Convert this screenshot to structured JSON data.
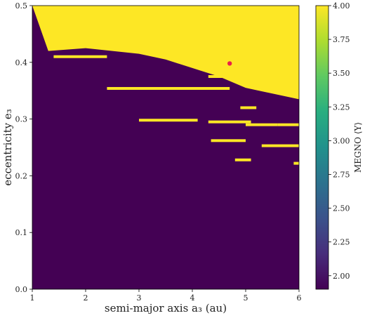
{
  "chart_data": {
    "type": "heatmap",
    "xlabel": "semi-major axis a₃ (au)",
    "ylabel": "eccentricity e₃",
    "colorbar_label": "MEGNO ⟨Y⟩",
    "xlim": [
      1,
      6
    ],
    "ylim": [
      0.0,
      0.5
    ],
    "x_ticks": [
      "1",
      "2",
      "3",
      "4",
      "5",
      "6"
    ],
    "y_ticks": [
      "0.0",
      "0.1",
      "0.2",
      "0.3",
      "0.4",
      "0.5"
    ],
    "colorbar_range": [
      1.9,
      4.0
    ],
    "colorbar_ticks": [
      "2.00",
      "2.25",
      "2.50",
      "2.75",
      "3.00",
      "3.25",
      "3.50",
      "3.75",
      "4.00"
    ],
    "colormap": "viridis",
    "low_value_color": "#440154",
    "high_value_color": "#fde725",
    "grid": false,
    "chaotic_boundary": [
      {
        "a": 1.0,
        "e_min": 0.5
      },
      {
        "a": 1.3,
        "e_min": 0.42
      },
      {
        "a": 2.0,
        "e_min": 0.425
      },
      {
        "a": 3.0,
        "e_min": 0.415
      },
      {
        "a": 3.5,
        "e_min": 0.405
      },
      {
        "a": 4.0,
        "e_min": 0.39
      },
      {
        "a": 4.5,
        "e_min": 0.375
      },
      {
        "a": 5.0,
        "e_min": 0.355
      },
      {
        "a": 5.5,
        "e_min": 0.345
      },
      {
        "a": 6.0,
        "e_min": 0.335
      }
    ],
    "chaotic_streaks": [
      {
        "a_start": 2.4,
        "a_end": 4.7,
        "e": 0.354
      },
      {
        "a_start": 3.0,
        "a_end": 4.1,
        "e": 0.298
      },
      {
        "a_start": 4.3,
        "a_end": 5.1,
        "e": 0.295
      },
      {
        "a_start": 4.35,
        "a_end": 5.0,
        "e": 0.262
      },
      {
        "a_start": 5.3,
        "a_end": 6.0,
        "e": 0.253
      },
      {
        "a_start": 4.3,
        "a_end": 4.8,
        "e": 0.375
      },
      {
        "a_start": 5.0,
        "a_end": 5.6,
        "e": 0.29
      },
      {
        "a_start": 4.9,
        "a_end": 5.2,
        "e": 0.32
      },
      {
        "a_start": 5.6,
        "a_end": 6.0,
        "e": 0.29
      },
      {
        "a_start": 1.4,
        "a_end": 2.4,
        "e": 0.41
      },
      {
        "a_start": 4.8,
        "a_end": 5.1,
        "e": 0.228
      },
      {
        "a_start": 5.9,
        "a_end": 6.0,
        "e": 0.222
      }
    ],
    "marker": {
      "a": 4.7,
      "e": 0.398,
      "color": "#e8204a"
    }
  }
}
